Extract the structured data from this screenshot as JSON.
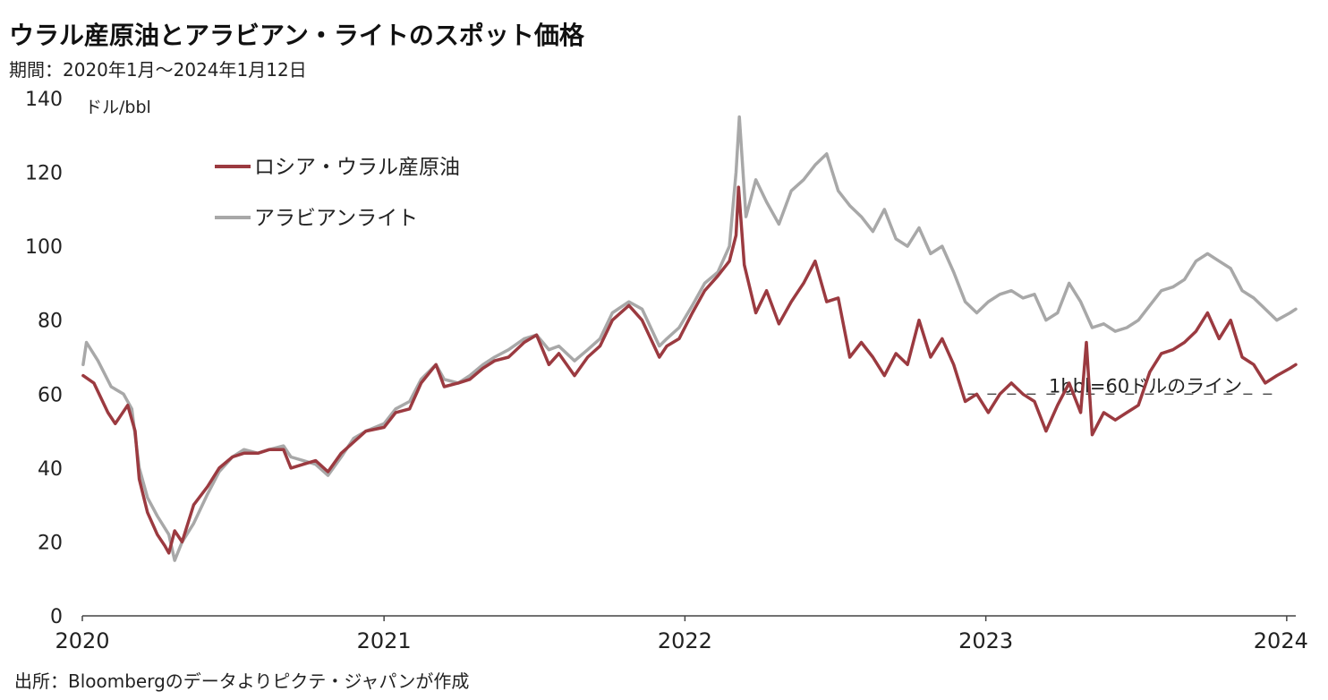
{
  "title": "ウラル産原油とアラビアン・ライトのスポット価格",
  "subtitle": "期間：2020年1月～2024年1月12日",
  "source": "出所：Bloombergのデータよりピクテ・ジャパンが作成",
  "colors": {
    "urals": "#9b3a40",
    "arabian_light": "#a8a8a8",
    "axis": "#444444",
    "reference": "#333333"
  },
  "chart_data": {
    "type": "line",
    "ylabel": "ドル/bbl",
    "ylim": [
      0,
      140
    ],
    "yticks": [
      "0",
      "20",
      "40",
      "60",
      "80",
      "100",
      "120",
      "140"
    ],
    "xlim": [
      "2020-01-01",
      "2024-01-12"
    ],
    "xticks": [
      "2020",
      "2021",
      "2022",
      "2023",
      "2024"
    ],
    "grid": false,
    "legend_position": "top-left",
    "reference_line": {
      "value": 60,
      "label": "1bbl=60ドルのライン"
    },
    "series": [
      {
        "name": "ロシア・ウラル産原油",
        "points": [
          [
            "2020-01-02",
            65
          ],
          [
            "2020-01-15",
            63
          ],
          [
            "2020-02-01",
            55
          ],
          [
            "2020-02-10",
            52
          ],
          [
            "2020-02-25",
            57
          ],
          [
            "2020-03-05",
            50
          ],
          [
            "2020-03-10",
            37
          ],
          [
            "2020-03-20",
            28
          ],
          [
            "2020-04-01",
            22
          ],
          [
            "2020-04-10",
            19
          ],
          [
            "2020-04-15",
            17
          ],
          [
            "2020-04-22",
            23
          ],
          [
            "2020-05-01",
            20
          ],
          [
            "2020-05-15",
            30
          ],
          [
            "2020-06-01",
            35
          ],
          [
            "2020-06-15",
            40
          ],
          [
            "2020-07-01",
            43
          ],
          [
            "2020-07-15",
            44
          ],
          [
            "2020-08-01",
            44
          ],
          [
            "2020-08-15",
            45
          ],
          [
            "2020-09-01",
            45
          ],
          [
            "2020-09-10",
            40
          ],
          [
            "2020-09-25",
            41
          ],
          [
            "2020-10-10",
            42
          ],
          [
            "2020-10-25",
            39
          ],
          [
            "2020-11-10",
            44
          ],
          [
            "2020-11-25",
            47
          ],
          [
            "2020-12-10",
            50
          ],
          [
            "2021-01-01",
            51
          ],
          [
            "2021-01-15",
            55
          ],
          [
            "2021-02-01",
            56
          ],
          [
            "2021-02-15",
            63
          ],
          [
            "2021-03-05",
            68
          ],
          [
            "2021-03-15",
            62
          ],
          [
            "2021-04-01",
            63
          ],
          [
            "2021-04-15",
            64
          ],
          [
            "2021-05-01",
            67
          ],
          [
            "2021-05-15",
            69
          ],
          [
            "2021-06-01",
            70
          ],
          [
            "2021-06-20",
            74
          ],
          [
            "2021-07-05",
            76
          ],
          [
            "2021-07-20",
            68
          ],
          [
            "2021-08-01",
            71
          ],
          [
            "2021-08-20",
            65
          ],
          [
            "2021-09-05",
            70
          ],
          [
            "2021-09-20",
            73
          ],
          [
            "2021-10-05",
            80
          ],
          [
            "2021-10-25",
            84
          ],
          [
            "2021-11-10",
            80
          ],
          [
            "2021-12-01",
            70
          ],
          [
            "2021-12-10",
            73
          ],
          [
            "2021-12-25",
            75
          ],
          [
            "2022-01-10",
            82
          ],
          [
            "2022-01-25",
            88
          ],
          [
            "2022-02-10",
            92
          ],
          [
            "2022-02-24",
            96
          ],
          [
            "2022-03-04",
            103
          ],
          [
            "2022-03-07",
            116
          ],
          [
            "2022-03-14",
            95
          ],
          [
            "2022-03-28",
            82
          ],
          [
            "2022-04-10",
            88
          ],
          [
            "2022-04-25",
            79
          ],
          [
            "2022-05-10",
            85
          ],
          [
            "2022-05-25",
            90
          ],
          [
            "2022-06-08",
            96
          ],
          [
            "2022-06-22",
            85
          ],
          [
            "2022-07-06",
            86
          ],
          [
            "2022-07-20",
            70
          ],
          [
            "2022-08-03",
            74
          ],
          [
            "2022-08-17",
            70
          ],
          [
            "2022-08-31",
            65
          ],
          [
            "2022-09-14",
            71
          ],
          [
            "2022-09-28",
            68
          ],
          [
            "2022-10-12",
            80
          ],
          [
            "2022-10-26",
            70
          ],
          [
            "2022-11-09",
            75
          ],
          [
            "2022-11-23",
            68
          ],
          [
            "2022-12-07",
            58
          ],
          [
            "2022-12-21",
            60
          ],
          [
            "2023-01-04",
            55
          ],
          [
            "2023-01-18",
            60
          ],
          [
            "2023-02-01",
            63
          ],
          [
            "2023-02-15",
            60
          ],
          [
            "2023-03-01",
            58
          ],
          [
            "2023-03-15",
            50
          ],
          [
            "2023-03-29",
            57
          ],
          [
            "2023-04-12",
            63
          ],
          [
            "2023-04-26",
            55
          ],
          [
            "2023-05-03",
            74
          ],
          [
            "2023-05-10",
            49
          ],
          [
            "2023-05-24",
            55
          ],
          [
            "2023-06-07",
            53
          ],
          [
            "2023-06-21",
            55
          ],
          [
            "2023-07-05",
            57
          ],
          [
            "2023-07-19",
            66
          ],
          [
            "2023-08-02",
            71
          ],
          [
            "2023-08-16",
            72
          ],
          [
            "2023-08-30",
            74
          ],
          [
            "2023-09-13",
            77
          ],
          [
            "2023-09-27",
            82
          ],
          [
            "2023-10-11",
            75
          ],
          [
            "2023-10-25",
            80
          ],
          [
            "2023-11-08",
            70
          ],
          [
            "2023-11-22",
            68
          ],
          [
            "2023-12-06",
            63
          ],
          [
            "2023-12-20",
            65
          ],
          [
            "2024-01-05",
            67
          ],
          [
            "2024-01-12",
            68
          ]
        ]
      },
      {
        "name": "アラビアンライト",
        "points": [
          [
            "2020-01-02",
            68
          ],
          [
            "2020-01-06",
            74
          ],
          [
            "2020-01-20",
            69
          ],
          [
            "2020-02-05",
            62
          ],
          [
            "2020-02-20",
            60
          ],
          [
            "2020-03-01",
            56
          ],
          [
            "2020-03-10",
            40
          ],
          [
            "2020-03-20",
            32
          ],
          [
            "2020-04-01",
            27
          ],
          [
            "2020-04-15",
            22
          ],
          [
            "2020-04-22",
            15
          ],
          [
            "2020-05-01",
            20
          ],
          [
            "2020-05-15",
            25
          ],
          [
            "2020-06-01",
            33
          ],
          [
            "2020-06-15",
            39
          ],
          [
            "2020-07-01",
            43
          ],
          [
            "2020-07-15",
            45
          ],
          [
            "2020-08-01",
            44
          ],
          [
            "2020-08-15",
            45
          ],
          [
            "2020-09-01",
            46
          ],
          [
            "2020-09-10",
            43
          ],
          [
            "2020-09-25",
            42
          ],
          [
            "2020-10-10",
            41
          ],
          [
            "2020-10-25",
            38
          ],
          [
            "2020-11-10",
            43
          ],
          [
            "2020-11-25",
            48
          ],
          [
            "2020-12-10",
            50
          ],
          [
            "2021-01-01",
            52
          ],
          [
            "2021-01-15",
            56
          ],
          [
            "2021-02-01",
            58
          ],
          [
            "2021-02-15",
            64
          ],
          [
            "2021-03-05",
            68
          ],
          [
            "2021-03-15",
            64
          ],
          [
            "2021-04-01",
            63
          ],
          [
            "2021-04-15",
            65
          ],
          [
            "2021-05-01",
            68
          ],
          [
            "2021-05-15",
            70
          ],
          [
            "2021-06-01",
            72
          ],
          [
            "2021-06-20",
            75
          ],
          [
            "2021-07-05",
            76
          ],
          [
            "2021-07-20",
            72
          ],
          [
            "2021-08-01",
            73
          ],
          [
            "2021-08-20",
            69
          ],
          [
            "2021-09-05",
            72
          ],
          [
            "2021-09-20",
            75
          ],
          [
            "2021-10-05",
            82
          ],
          [
            "2021-10-25",
            85
          ],
          [
            "2021-11-10",
            83
          ],
          [
            "2021-12-01",
            73
          ],
          [
            "2021-12-10",
            75
          ],
          [
            "2021-12-25",
            78
          ],
          [
            "2022-01-10",
            84
          ],
          [
            "2022-01-25",
            90
          ],
          [
            "2022-02-10",
            93
          ],
          [
            "2022-02-24",
            100
          ],
          [
            "2022-03-04",
            120
          ],
          [
            "2022-03-08",
            135
          ],
          [
            "2022-03-16",
            108
          ],
          [
            "2022-03-28",
            118
          ],
          [
            "2022-04-10",
            112
          ],
          [
            "2022-04-25",
            106
          ],
          [
            "2022-05-10",
            115
          ],
          [
            "2022-05-25",
            118
          ],
          [
            "2022-06-08",
            122
          ],
          [
            "2022-06-22",
            125
          ],
          [
            "2022-07-06",
            115
          ],
          [
            "2022-07-20",
            111
          ],
          [
            "2022-08-03",
            108
          ],
          [
            "2022-08-17",
            104
          ],
          [
            "2022-08-31",
            110
          ],
          [
            "2022-09-14",
            102
          ],
          [
            "2022-09-28",
            100
          ],
          [
            "2022-10-12",
            105
          ],
          [
            "2022-10-26",
            98
          ],
          [
            "2022-11-09",
            100
          ],
          [
            "2022-11-23",
            93
          ],
          [
            "2022-12-07",
            85
          ],
          [
            "2022-12-21",
            82
          ],
          [
            "2023-01-04",
            85
          ],
          [
            "2023-01-18",
            87
          ],
          [
            "2023-02-01",
            88
          ],
          [
            "2023-02-15",
            86
          ],
          [
            "2023-03-01",
            87
          ],
          [
            "2023-03-15",
            80
          ],
          [
            "2023-03-29",
            82
          ],
          [
            "2023-04-12",
            90
          ],
          [
            "2023-04-26",
            85
          ],
          [
            "2023-05-10",
            78
          ],
          [
            "2023-05-24",
            79
          ],
          [
            "2023-06-07",
            77
          ],
          [
            "2023-06-21",
            78
          ],
          [
            "2023-07-05",
            80
          ],
          [
            "2023-07-19",
            84
          ],
          [
            "2023-08-02",
            88
          ],
          [
            "2023-08-16",
            89
          ],
          [
            "2023-08-30",
            91
          ],
          [
            "2023-09-13",
            96
          ],
          [
            "2023-09-27",
            98
          ],
          [
            "2023-10-11",
            96
          ],
          [
            "2023-10-25",
            94
          ],
          [
            "2023-11-08",
            88
          ],
          [
            "2023-11-22",
            86
          ],
          [
            "2023-12-06",
            83
          ],
          [
            "2023-12-20",
            80
          ],
          [
            "2024-01-05",
            82
          ],
          [
            "2024-01-12",
            83
          ]
        ]
      }
    ]
  }
}
